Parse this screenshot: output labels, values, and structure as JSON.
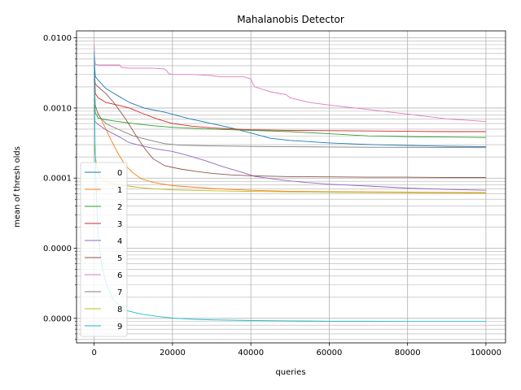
{
  "chart_data": {
    "type": "line",
    "title": "Mahalanobis Detector",
    "xlabel": "queries",
    "ylabel": "mean of thresh   olds",
    "y_scale": "log",
    "xlim": [
      -4500,
      105000
    ],
    "ylim_log10": [
      -6.35,
      -1.9
    ],
    "x_ticks": [
      0,
      20000,
      40000,
      60000,
      80000,
      100000
    ],
    "x_tick_labels": [
      "0",
      "20000",
      "40000",
      "60000",
      "80000",
      "100000"
    ],
    "y_ticks_log10": [
      -2,
      -3,
      -4,
      -5,
      -6
    ],
    "y_tick_labels": [
      "0.0100",
      "0.0010",
      "0.0001",
      "0.0000",
      "0.0000"
    ],
    "grid": "major and minor",
    "legend_position": "lower-left",
    "series": [
      {
        "name": "0",
        "color": "#1f77b4",
        "x": [
          0,
          300,
          1000,
          3000,
          6000,
          9000,
          13000,
          18000,
          24000,
          30000,
          35000,
          40000,
          45000,
          50000,
          60000,
          70000,
          80000,
          90000,
          100000
        ],
        "y": [
          0.0049,
          0.0028,
          0.0025,
          0.0019,
          0.0015,
          0.0012,
          0.00099,
          0.00087,
          0.00071,
          0.0006,
          0.00052,
          0.00044,
          0.00037,
          0.000345,
          0.000318,
          0.000302,
          0.000292,
          0.000285,
          0.00028
        ]
      },
      {
        "name": "1",
        "color": "#ff7f0e",
        "x": [
          0,
          200,
          800,
          2000,
          4000,
          6000,
          8000,
          10000,
          12000,
          15000,
          20000,
          30000,
          40000,
          50000,
          60000,
          70000,
          80000,
          90000,
          100000
        ],
        "y": [
          0.00135,
          0.00105,
          0.0009,
          0.00065,
          0.00038,
          0.00023,
          0.00015,
          0.000118,
          9.8e-05,
          8.7e-05,
          7.8e-05,
          7.1e-05,
          6.7e-05,
          6.5e-05,
          6.4e-05,
          6.35e-05,
          6.3e-05,
          6.25e-05,
          6.2e-05
        ]
      },
      {
        "name": "2",
        "color": "#2ca02c",
        "x": [
          0,
          300,
          1000,
          3000,
          6000,
          10000,
          15000,
          20000,
          30000,
          40000,
          50000,
          60000,
          70000,
          80000,
          90000,
          100000
        ],
        "y": [
          0.0013,
          0.00085,
          0.00072,
          0.00068,
          0.00064,
          0.0006,
          0.00056,
          0.00053,
          0.0005,
          0.00048,
          0.00046,
          0.00043,
          0.0004,
          0.00039,
          0.000385,
          0.00038
        ]
      },
      {
        "name": "3",
        "color": "#d62728",
        "x": [
          0,
          300,
          1000,
          3000,
          6000,
          9000,
          12000,
          16000,
          20000,
          25000,
          30000,
          40000,
          50000,
          60000,
          70000,
          80000,
          90000,
          100000
        ],
        "y": [
          0.0042,
          0.0016,
          0.0014,
          0.0012,
          0.0011,
          0.001,
          0.00085,
          0.0007,
          0.0006,
          0.00055,
          0.00052,
          0.00049,
          0.00048,
          0.000475,
          0.00047,
          0.000465,
          0.00046,
          0.00046
        ]
      },
      {
        "name": "4",
        "color": "#9467bd",
        "x": [
          0,
          200,
          1000,
          3000,
          6000,
          9000,
          12000,
          16000,
          20000,
          24000,
          28000,
          33000,
          38000,
          41000,
          45000,
          50000,
          55000,
          60000,
          70000,
          80000,
          90000,
          100000
        ],
        "y": [
          0.0011,
          0.00065,
          0.00058,
          0.00049,
          0.0004,
          0.00032,
          0.00029,
          0.00026,
          0.00024,
          0.00021,
          0.00018,
          0.000145,
          0.00012,
          0.000106,
          9.85e-05,
          9.1e-05,
          8.6e-05,
          8.2e-05,
          7.7e-05,
          7.2e-05,
          6.9e-05,
          6.7e-05
        ]
      },
      {
        "name": "5",
        "color": "#8c564b",
        "x": [
          0,
          300,
          1000,
          3000,
          5000,
          8000,
          11000,
          13000,
          15000,
          18000,
          22000,
          26000,
          30000,
          35000,
          40000,
          50000,
          60000,
          70000,
          80000,
          90000,
          100000
        ],
        "y": [
          0.0032,
          0.0022,
          0.002,
          0.0016,
          0.0012,
          0.0007,
          0.00038,
          0.00026,
          0.00019,
          0.00015,
          0.000135,
          0.000125,
          0.000117,
          0.000111,
          0.000108,
          0.000105,
          0.000104,
          0.000103,
          0.000103,
          0.000102,
          0.000102
        ]
      },
      {
        "name": "6",
        "color": "#e377c2",
        "x": [
          0,
          100,
          300,
          1000,
          3000,
          6500,
          7000,
          9000,
          15000,
          18000,
          18500,
          19000,
          20000,
          25000,
          30000,
          32000,
          38000,
          40000,
          40500,
          41000,
          45000,
          49000,
          50000,
          55000,
          60000,
          70000,
          80000,
          90000,
          100000
        ],
        "y": [
          0.0079,
          0.0056,
          0.0042,
          0.0041,
          0.0041,
          0.0041,
          0.0038,
          0.0037,
          0.0037,
          0.0036,
          0.0034,
          0.0031,
          0.003,
          0.003,
          0.0029,
          0.0028,
          0.0028,
          0.0026,
          0.0022,
          0.002,
          0.0017,
          0.00155,
          0.0014,
          0.0012,
          0.0011,
          0.00095,
          0.00082,
          0.0007,
          0.00064
        ]
      },
      {
        "name": "7",
        "color": "#7f7f7f",
        "x": [
          0,
          300,
          1000,
          3000,
          6000,
          10000,
          14000,
          18000,
          22000,
          30000,
          40000,
          50000,
          60000,
          70000,
          80000,
          90000,
          100000
        ],
        "y": [
          0.0026,
          0.0011,
          0.0008,
          0.0006,
          0.0005,
          0.0004,
          0.00035,
          0.00031,
          0.000295,
          0.000288,
          0.000283,
          0.00028,
          0.000278,
          0.000276,
          0.000275,
          0.000273,
          0.000272
        ]
      },
      {
        "name": "8",
        "color": "#bcbd22",
        "x": [
          0,
          200,
          600,
          1200,
          2000,
          3000,
          5000,
          8000,
          12000,
          16000,
          20000,
          30000,
          40000,
          50000,
          60000,
          70000,
          80000,
          90000,
          100000
        ],
        "y": [
          0.0003,
          0.00022,
          0.00016,
          0.00011,
          9.5e-05,
          8.8e-05,
          8.3e-05,
          7.8e-05,
          7.3e-05,
          7e-05,
          6.8e-05,
          6.6e-05,
          6.45e-05,
          6.35e-05,
          6.3e-05,
          6.25e-05,
          6.2e-05,
          6.15e-05,
          6.1e-05
        ]
      },
      {
        "name": "9",
        "color": "#17becf",
        "x": [
          0,
          100,
          300,
          600,
          1000,
          2000,
          3000,
          5000,
          8000,
          12000,
          16000,
          20000,
          25000,
          30000,
          40000,
          50000,
          60000,
          70000,
          80000,
          90000,
          100000
        ],
        "y": [
          0.0065,
          0.001,
          0.0002,
          5e-05,
          1.5e-05,
          5.5e-06,
          3.2e-06,
          1.8e-06,
          1.3e-06,
          1.15e-06,
          1.07e-06,
          1.01e-06,
          9.7e-07,
          9.5e-07,
          9.3e-07,
          9.2e-07,
          9.1e-07,
          9.1e-07,
          9e-07,
          9e-07,
          9e-07
        ]
      }
    ]
  }
}
